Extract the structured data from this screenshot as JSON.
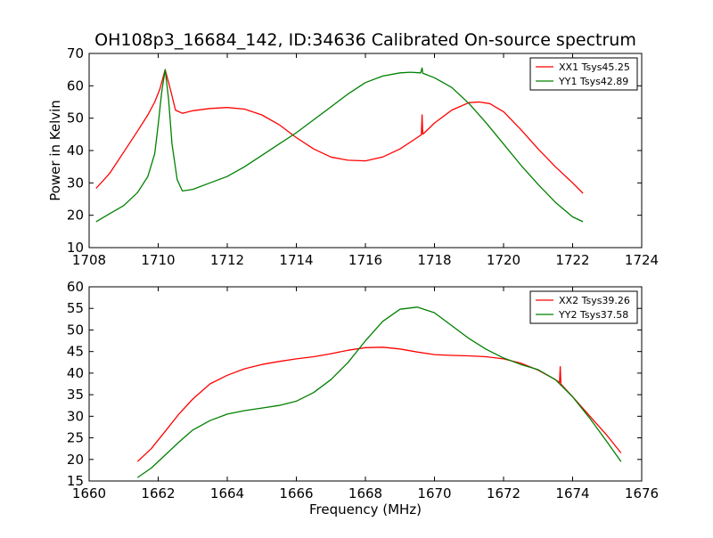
{
  "chart_title": "OH108p3_16684_142, ID:34636 Calibrated On-source spectrum",
  "colors": {
    "red": "#ff0000",
    "green": "#008000",
    "axes": "#000000",
    "background": "#ffffff"
  },
  "chart_data": [
    {
      "type": "line",
      "title": "OH108p3_16684_142, ID:34636 Calibrated On-source spectrum",
      "xlabel": "",
      "ylabel": "Power in Kelvin",
      "xlim": [
        1708,
        1724
      ],
      "ylim": [
        10,
        70
      ],
      "xticks": [
        1708,
        1710,
        1712,
        1714,
        1716,
        1718,
        1720,
        1722,
        1724
      ],
      "yticks": [
        10,
        20,
        30,
        40,
        50,
        60,
        70
      ],
      "grid": false,
      "legend": "top-right",
      "series": [
        {
          "name": "XX1 Tsys45.25",
          "color": "#ff0000",
          "x": [
            1708.2,
            1708.6,
            1709.0,
            1709.4,
            1709.7,
            1709.9,
            1710.05,
            1710.2,
            1710.35,
            1710.5,
            1710.7,
            1711.0,
            1711.5,
            1712.0,
            1712.5,
            1713.0,
            1713.5,
            1714.0,
            1714.5,
            1715.0,
            1715.5,
            1716.0,
            1716.5,
            1717.0,
            1717.5,
            1717.62,
            1717.64,
            1717.66,
            1717.68,
            1718.0,
            1718.5,
            1719.0,
            1719.3,
            1719.6,
            1720.0,
            1720.5,
            1721.0,
            1721.5,
            1722.0,
            1722.3
          ],
          "y": [
            28.3,
            33.0,
            39.5,
            46.0,
            51.0,
            55.0,
            59.0,
            65.0,
            59.0,
            52.5,
            51.5,
            52.3,
            53.0,
            53.3,
            52.8,
            51.0,
            48.0,
            44.0,
            40.5,
            38.0,
            37.0,
            36.8,
            38.0,
            40.5,
            44.0,
            44.9,
            51.0,
            45.1,
            45.2,
            48.5,
            52.5,
            54.8,
            55.0,
            54.5,
            52.0,
            46.5,
            40.5,
            35.0,
            30.0,
            26.8
          ]
        },
        {
          "name": "YY1 Tsys42.89",
          "color": "#008000",
          "x": [
            1708.2,
            1708.6,
            1709.0,
            1709.4,
            1709.7,
            1709.9,
            1710.0,
            1710.1,
            1710.2,
            1710.3,
            1710.4,
            1710.55,
            1710.7,
            1711.0,
            1711.5,
            1712.0,
            1712.5,
            1713.0,
            1713.5,
            1714.0,
            1714.5,
            1715.0,
            1715.5,
            1716.0,
            1716.5,
            1717.0,
            1717.3,
            1717.6,
            1717.64,
            1717.66,
            1717.68,
            1718.0,
            1718.5,
            1719.0,
            1719.5,
            1720.0,
            1720.5,
            1721.0,
            1721.5,
            1722.0,
            1722.3
          ],
          "y": [
            18.0,
            20.5,
            23.0,
            27.0,
            32.0,
            39.0,
            48.0,
            58.0,
            65.0,
            56.0,
            42.0,
            31.0,
            27.5,
            28.0,
            30.0,
            32.0,
            35.0,
            38.5,
            42.0,
            45.5,
            49.5,
            53.5,
            57.5,
            61.0,
            63.0,
            64.0,
            64.2,
            64.0,
            65.5,
            63.9,
            63.8,
            62.5,
            59.5,
            54.5,
            48.5,
            42.0,
            35.5,
            29.5,
            24.0,
            19.5,
            18.0
          ]
        }
      ]
    },
    {
      "type": "line",
      "title": "",
      "xlabel": "Frequency (MHz)",
      "ylabel": "",
      "xlim": [
        1660,
        1676
      ],
      "ylim": [
        15,
        60
      ],
      "xticks": [
        1660,
        1662,
        1664,
        1666,
        1668,
        1670,
        1672,
        1674,
        1676
      ],
      "yticks": [
        15,
        20,
        25,
        30,
        35,
        40,
        45,
        50,
        55,
        60
      ],
      "grid": false,
      "legend": "top-right",
      "series": [
        {
          "name": "XX2 Tsys39.26",
          "color": "#ff0000",
          "x": [
            1661.4,
            1661.8,
            1662.2,
            1662.6,
            1663.0,
            1663.5,
            1664.0,
            1664.5,
            1665.0,
            1665.5,
            1666.0,
            1666.5,
            1667.0,
            1667.5,
            1668.0,
            1668.5,
            1669.0,
            1669.5,
            1670.0,
            1670.5,
            1671.0,
            1671.5,
            1672.0,
            1672.5,
            1673.0,
            1673.5,
            1673.62,
            1673.64,
            1673.66,
            1673.68,
            1674.0,
            1674.5,
            1675.0,
            1675.4
          ],
          "y": [
            19.5,
            22.5,
            26.5,
            30.5,
            34.0,
            37.5,
            39.5,
            41.0,
            42.0,
            42.7,
            43.3,
            43.8,
            44.5,
            45.3,
            45.9,
            46.0,
            45.6,
            44.9,
            44.3,
            44.1,
            44.0,
            43.8,
            43.3,
            42.3,
            40.7,
            38.5,
            37.8,
            41.5,
            37.5,
            37.3,
            34.5,
            30.0,
            25.5,
            21.5
          ]
        },
        {
          "name": "YY2 Tsys37.58",
          "color": "#008000",
          "x": [
            1661.4,
            1661.8,
            1662.2,
            1662.6,
            1663.0,
            1663.5,
            1664.0,
            1664.5,
            1665.0,
            1665.5,
            1666.0,
            1666.5,
            1667.0,
            1667.5,
            1668.0,
            1668.5,
            1669.0,
            1669.5,
            1670.0,
            1670.5,
            1671.0,
            1671.5,
            1672.0,
            1672.5,
            1673.0,
            1673.5,
            1674.0,
            1674.5,
            1675.0,
            1675.4
          ],
          "y": [
            15.8,
            18.0,
            21.0,
            24.0,
            26.8,
            29.0,
            30.5,
            31.3,
            31.9,
            32.5,
            33.5,
            35.5,
            38.5,
            42.5,
            47.5,
            52.0,
            54.8,
            55.3,
            54.0,
            51.0,
            48.0,
            45.5,
            43.5,
            42.0,
            40.8,
            38.5,
            34.5,
            29.5,
            24.0,
            19.5
          ]
        }
      ]
    }
  ]
}
